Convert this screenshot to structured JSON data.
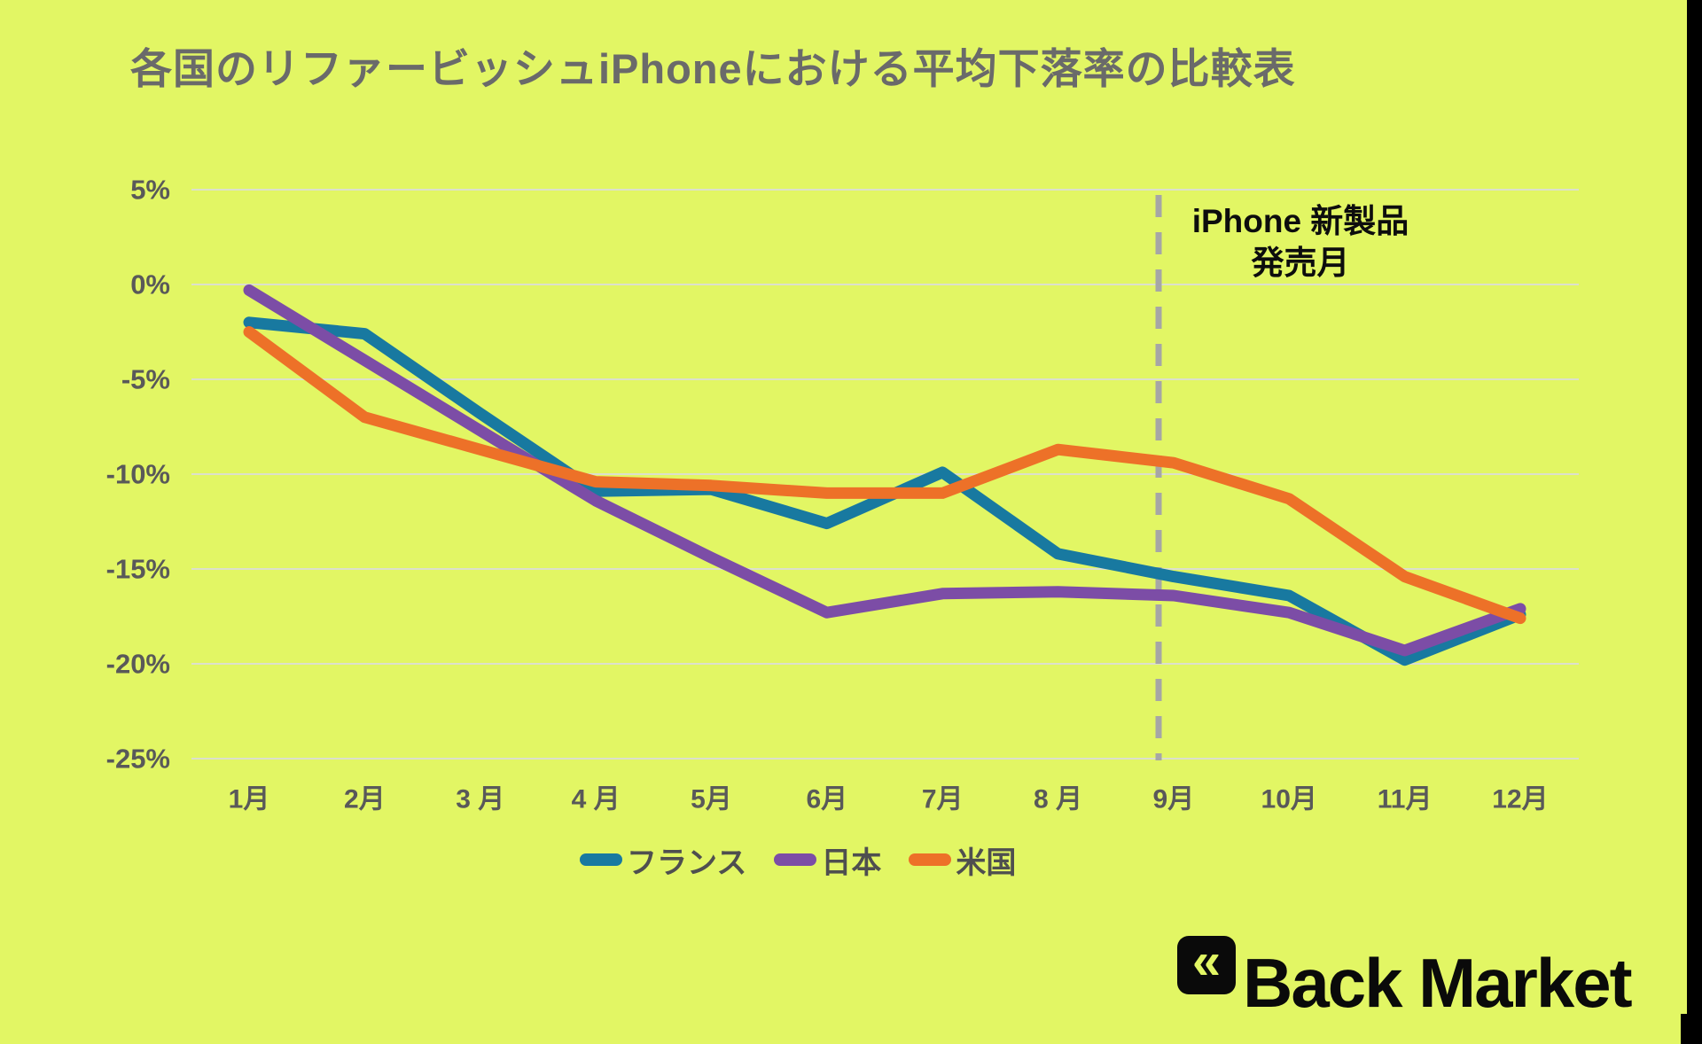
{
  "title": "各国のリファービッシュiPhoneにおける平均下落率の比較表",
  "annotation": {
    "line1": "iPhone 新製品",
    "line2": "発売月"
  },
  "logo": {
    "chevron_icon": "«",
    "text": "Back Market"
  },
  "colors": {
    "background": "#E2F664",
    "title_text": "#6A6A6A",
    "axis_text": "#595959",
    "legend_text": "#4F4F4F",
    "gridline": "#DCE0CC",
    "dashed_line": "#A6A6A6",
    "annotation_text": "#0D0D0D",
    "logo_black": "#0A0A0A",
    "france": "#1879A0",
    "japan": "#7C4DA6",
    "usa": "#ED7128"
  },
  "chart_data": {
    "type": "line",
    "title": "各国のリファービッシュiPhoneにおける平均下落率の比較表",
    "categories": [
      "1月",
      "2月",
      "3 月",
      "4 月",
      "5月",
      "6月",
      "7月",
      "8 月",
      "9月",
      "10月",
      "11月",
      "12月"
    ],
    "series": [
      {
        "name": "フランス",
        "color": "#1879A0",
        "values": [
          -2.0,
          -2.6,
          -6.8,
          -10.9,
          -10.8,
          -12.6,
          -9.9,
          -14.2,
          -15.4,
          -16.4,
          -19.8,
          -17.4
        ]
      },
      {
        "name": "日本",
        "color": "#7C4DA6",
        "values": [
          -0.3,
          -4.0,
          -7.7,
          -11.4,
          -14.4,
          -17.3,
          -16.3,
          -16.2,
          -16.4,
          -17.3,
          -19.3,
          -17.1
        ]
      },
      {
        "name": "米国",
        "color": "#ED7128",
        "values": [
          -2.5,
          -7.0,
          -8.7,
          -10.4,
          -10.6,
          -11.0,
          -11.0,
          -8.7,
          -9.4,
          -11.3,
          -15.4,
          -17.6
        ]
      }
    ],
    "ylabel": "",
    "xlabel": "",
    "y_ticks": [
      "5%",
      "0%",
      "-5%",
      "-10%",
      "-15%",
      "-20%",
      "-25%"
    ],
    "y_tick_values": [
      5,
      0,
      -5,
      -10,
      -15,
      -20,
      -25
    ],
    "ylim": [
      -25,
      5
    ],
    "grid": "horizontal",
    "legend_position": "bottom",
    "vline": {
      "at_category": "9月",
      "style": "dashed",
      "color": "#A6A6A6",
      "label": "iPhone 新製品 発売月"
    }
  }
}
